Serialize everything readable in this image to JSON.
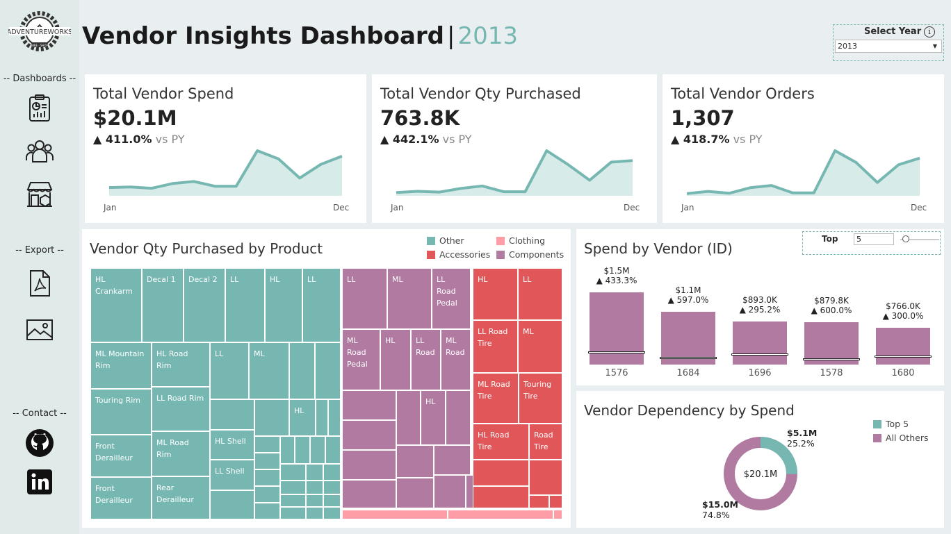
{
  "app": {
    "title": "Vendor Insights Dashboard",
    "title_separator": "|",
    "year_display": "2013",
    "logo_text": "ADVENTUREWORKS",
    "logo_subtext": "BIKE · SHOP"
  },
  "sidebar": {
    "dashboards_header": "-- Dashboards --",
    "export_header": "-- Export --",
    "contact_header": "-- Contact --"
  },
  "year_filter": {
    "label": "Select Year",
    "info": "i",
    "value": "2013"
  },
  "kpis": [
    {
      "title": "Total Vendor Spend",
      "value": "$20.1M",
      "delta": "411.0%",
      "vs": "vs PY",
      "start": "Jan",
      "end": "Dec",
      "trend": [
        0.6,
        0.65,
        0.55,
        0.9,
        1.05,
        0.7,
        0.7,
        3.3,
        2.7,
        1.3,
        2.3,
        2.9
      ]
    },
    {
      "title": "Total Vendor Qty Purchased",
      "value": "763.8K",
      "delta": "442.1%",
      "vs": "vs PY",
      "start": "Jan",
      "end": "Dec",
      "trend": [
        0.4,
        0.55,
        0.45,
        0.9,
        1.2,
        0.5,
        0.5,
        5.5,
        3.8,
        1.9,
        4.1,
        4.3
      ]
    },
    {
      "title": "Total Vendor Orders",
      "value": "1,307",
      "delta": "418.7%",
      "vs": "vs PY",
      "start": "Jan",
      "end": "Dec",
      "trend": [
        0.3,
        0.6,
        0.35,
        1.1,
        1.4,
        0.4,
        0.4,
        6.1,
        4.5,
        1.8,
        4.2,
        5.1
      ]
    }
  ],
  "treemap": {
    "title": "Vendor Qty Purchased by Product",
    "legend": [
      {
        "label": "Other",
        "color": "#76b7b2"
      },
      {
        "label": "Clothing",
        "color": "#ff9da7"
      },
      {
        "label": "Accessories",
        "color": "#e15759"
      },
      {
        "label": "Components",
        "color": "#b07aa1"
      }
    ],
    "labels": {
      "o1": "HL Crankarm",
      "o2": "Decal 1",
      "o3": "Decal 2",
      "o4": "LL",
      "o5": "HL",
      "o6": "LL",
      "o7": "ML Mountain Rim",
      "o8": "HL Road Rim",
      "o9": "LL",
      "o10": "ML",
      "o11": "Touring Rim",
      "o12": "LL Road Rim",
      "o13": "HL",
      "o14": "Front Derailleur",
      "o15": "ML Road Rim",
      "o16": "HL Shell",
      "o17": "LL Shell",
      "o18": "Front Derailleur",
      "o19": "Rear Derailleur",
      "c1": "LL",
      "c2": "ML",
      "c3": "LL Road Pedal",
      "c4": "ML Road Pedal",
      "c5": "HL",
      "c6": "LL Road",
      "c7": "ML Road",
      "c8": "HL",
      "a1": "HL",
      "a2": "LL",
      "a3": "LL Road Tire",
      "a4": "ML",
      "a5": "ML Road Tire",
      "a6": "Touring Tire",
      "a7": "HL Road Tire",
      "a8": "Road Tire"
    }
  },
  "spend_by_vendor": {
    "title": "Spend by Vendor (ID)",
    "top_label": "Top",
    "top_value": "5",
    "bars": [
      {
        "id": "1576",
        "value": 1.5,
        "label": "$1.5M",
        "delta": "433.3%",
        "py": 0.28
      },
      {
        "id": "1684",
        "value": 1.1,
        "label": "$1.1M",
        "delta": "597.0%",
        "py": 0.16
      },
      {
        "id": "1696",
        "value": 0.893,
        "label": "$893.0K",
        "delta": "295.2%",
        "py": 0.23
      },
      {
        "id": "1578",
        "value": 0.8798,
        "label": "$879.8K",
        "delta": "600.0%",
        "py": 0.13
      },
      {
        "id": "1680",
        "value": 0.766,
        "label": "$766.0K",
        "delta": "300.0%",
        "py": 0.19
      }
    ]
  },
  "dependency": {
    "title": "Vendor Dependency by Spend",
    "center": "$20.1M",
    "legend": [
      {
        "label": "Top 5",
        "color": "#76b7b2"
      },
      {
        "label": "All Others",
        "color": "#b07aa1"
      }
    ],
    "top5_value": "$5.1M",
    "top5_pct": "25.2%",
    "top5_share": 0.252,
    "others_value": "$15.0M",
    "others_pct": "74.8%"
  }
}
